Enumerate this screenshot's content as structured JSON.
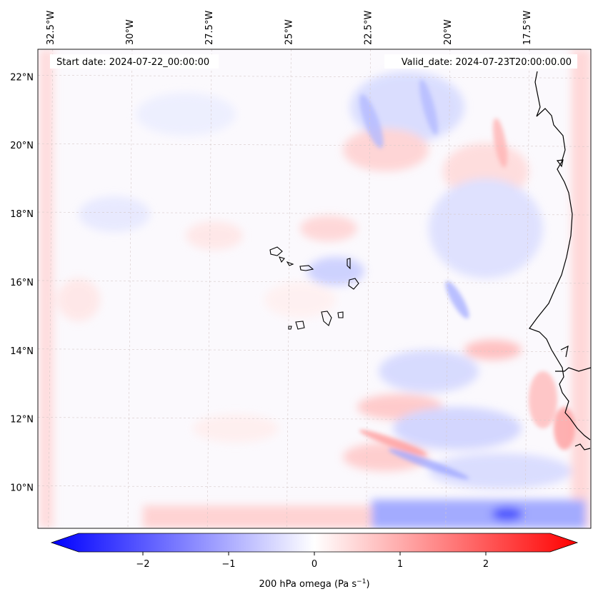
{
  "header": {
    "start_date": "Start date: 2024-07-22_00:00:00",
    "valid_date": "Valid_date: 2024-07-23T20:00:00.00"
  },
  "map": {
    "lon_range": [
      -32.9,
      -15.5
    ],
    "lat_range": [
      8.8,
      22.8
    ],
    "gridlines": true,
    "lon_ticks": [
      {
        "value": -32.5,
        "label": "32.5°W"
      },
      {
        "value": -30.0,
        "label": "30°W"
      },
      {
        "value": -27.5,
        "label": "27.5°W"
      },
      {
        "value": -25.0,
        "label": "25°W"
      },
      {
        "value": -22.5,
        "label": "22.5°W"
      },
      {
        "value": -20.0,
        "label": "20°W"
      },
      {
        "value": -17.5,
        "label": "17.5°W"
      }
    ],
    "lat_ticks": [
      {
        "value": 22,
        "label": "22°N"
      },
      {
        "value": 20,
        "label": "20°N"
      },
      {
        "value": 18,
        "label": "18°N"
      },
      {
        "value": 16,
        "label": "16°N"
      },
      {
        "value": 14,
        "label": "14°N"
      },
      {
        "value": 12,
        "label": "12°N"
      },
      {
        "value": 10,
        "label": "10°N"
      }
    ],
    "field_colors": {
      "negative": "#0000ff",
      "zero": "#ffffff",
      "positive": "#ff0000"
    }
  },
  "colorbar": {
    "label_main": "200 hPa omega (Pa s",
    "label_sup": "−1",
    "label_end": ")",
    "vmin": -2.75,
    "vmax": 2.75,
    "ticks": [
      {
        "value": -2,
        "label": "−2"
      },
      {
        "value": -1,
        "label": "−1"
      },
      {
        "value": 0,
        "label": "0"
      },
      {
        "value": 1,
        "label": "1"
      },
      {
        "value": 2,
        "label": "2"
      }
    ]
  }
}
